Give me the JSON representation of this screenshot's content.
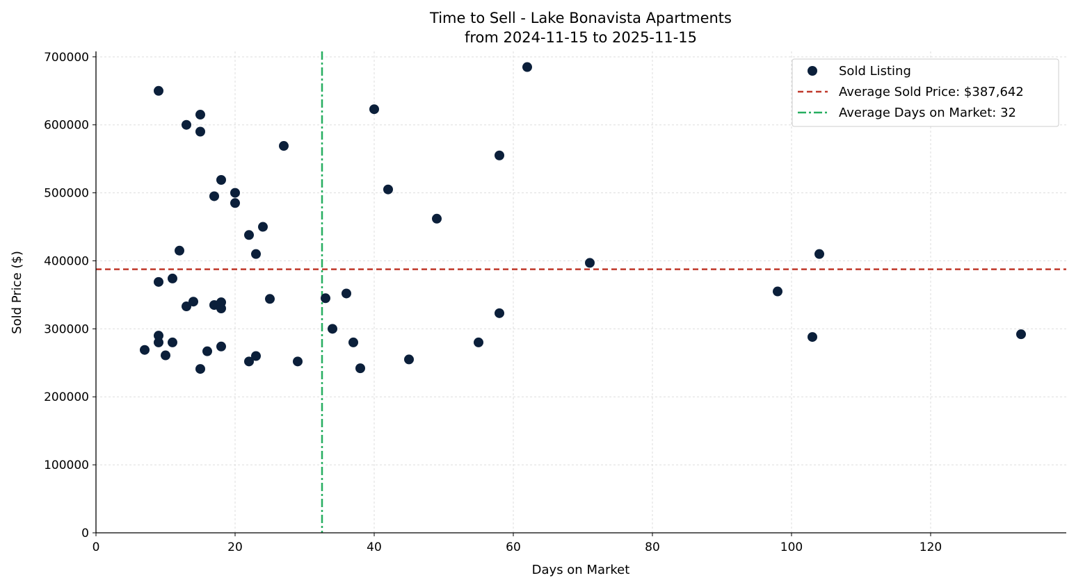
{
  "chart_data": {
    "type": "scatter",
    "title": "Time to Sell - Lake Bonavista Apartments",
    "subtitle": "from 2024-11-15 to 2025-11-15",
    "xlabel": "Days on Market",
    "ylabel": "Sold Price ($)",
    "xlim": [
      0,
      139.5
    ],
    "ylim": [
      0,
      708000
    ],
    "xticks": [
      0,
      20,
      40,
      60,
      80,
      100,
      120
    ],
    "yticks": [
      0,
      100000,
      200000,
      300000,
      400000,
      500000,
      600000,
      700000
    ],
    "grid": true,
    "legend_position": "top-right",
    "colors": {
      "points": "#0b1f3a",
      "avg_price": "#c0392b",
      "avg_days": "#27ae60"
    },
    "series": [
      {
        "name": "Sold Listing",
        "points": [
          [
            9,
            650000
          ],
          [
            15,
            615000
          ],
          [
            13,
            600000
          ],
          [
            15,
            590000
          ],
          [
            40,
            623000
          ],
          [
            62,
            685000
          ],
          [
            27,
            569000
          ],
          [
            58,
            555000
          ],
          [
            18,
            519000
          ],
          [
            20,
            500000
          ],
          [
            17,
            495000
          ],
          [
            20,
            485000
          ],
          [
            42,
            505000
          ],
          [
            49,
            462000
          ],
          [
            24,
            450000
          ],
          [
            22,
            438000
          ],
          [
            12,
            415000
          ],
          [
            23,
            410000
          ],
          [
            71,
            397000
          ],
          [
            104,
            410000
          ],
          [
            9,
            369000
          ],
          [
            11,
            374000
          ],
          [
            13,
            333000
          ],
          [
            14,
            340000
          ],
          [
            17,
            335000
          ],
          [
            18,
            339000
          ],
          [
            18,
            330000
          ],
          [
            25,
            344000
          ],
          [
            33,
            345000
          ],
          [
            36,
            352000
          ],
          [
            58,
            323000
          ],
          [
            98,
            355000
          ],
          [
            34,
            300000
          ],
          [
            9,
            290000
          ],
          [
            9,
            280000
          ],
          [
            11,
            280000
          ],
          [
            7,
            269000
          ],
          [
            10,
            261000
          ],
          [
            16,
            267000
          ],
          [
            18,
            274000
          ],
          [
            15,
            241000
          ],
          [
            22,
            252000
          ],
          [
            23,
            260000
          ],
          [
            29,
            252000
          ],
          [
            37,
            280000
          ],
          [
            38,
            242000
          ],
          [
            45,
            255000
          ],
          [
            55,
            280000
          ],
          [
            103,
            288000
          ],
          [
            133,
            292000
          ]
        ]
      }
    ],
    "reference_lines": [
      {
        "name": "Average Sold Price: $387,642",
        "axis": "y",
        "value": 387642,
        "style": "dashed"
      },
      {
        "name": "Average Days on Market: 32",
        "axis": "x",
        "value": 32.5,
        "style": "dashdot"
      }
    ]
  }
}
